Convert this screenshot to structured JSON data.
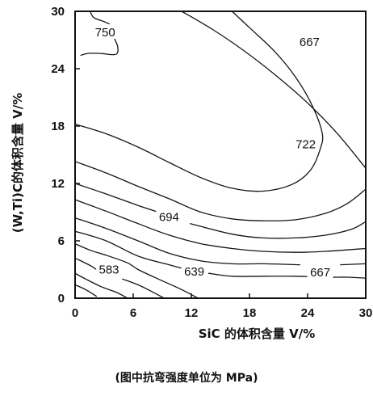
{
  "chart_data": {
    "type": "contour",
    "xlabel": "SiC 的体积含量 V/%",
    "ylabel": "(W,Ti)C的体积含量 V/%",
    "xlim": [
      0,
      30
    ],
    "ylim": [
      0,
      30
    ],
    "xticks": [
      "0",
      "6",
      "12",
      "18",
      "24",
      "30"
    ],
    "yticks": [
      "0",
      "6",
      "12",
      "18",
      "24",
      "30"
    ],
    "grid": false,
    "contour_labels": [
      {
        "text": "750",
        "x": 3.1,
        "y": 27.8
      },
      {
        "text": "667",
        "x": 24.2,
        "y": 26.8
      },
      {
        "text": "722",
        "x": 23.8,
        "y": 16.1
      },
      {
        "text": "694",
        "x": 9.7,
        "y": 8.5
      },
      {
        "text": "583",
        "x": 3.5,
        "y": 3.0
      },
      {
        "text": "639",
        "x": 12.3,
        "y": 2.8
      },
      {
        "text": "667",
        "x": 25.3,
        "y": 2.7
      }
    ],
    "contours": [
      {
        "level": "750",
        "points": [
          [
            0.6,
            25.4
          ],
          [
            1.3,
            25.6
          ],
          [
            2.6,
            25.6
          ],
          [
            4.2,
            25.5
          ],
          [
            4.4,
            26.3
          ],
          [
            4.0,
            27.3
          ],
          [
            3.6,
            28.6
          ],
          [
            2.0,
            29.3
          ],
          [
            1.6,
            29.9
          ]
        ]
      },
      {
        "level": "667",
        "points": [
          [
            11.0,
            30.0
          ],
          [
            14.2,
            28.1
          ],
          [
            17.4,
            25.9
          ],
          [
            20.6,
            23.4
          ],
          [
            23.8,
            20.6
          ],
          [
            27.0,
            17.3
          ],
          [
            30.0,
            13.6
          ]
        ]
      },
      {
        "level": "722",
        "points": [
          [
            0.0,
            18.2
          ],
          [
            3.2,
            17.2
          ],
          [
            6.5,
            15.8
          ],
          [
            9.7,
            14.2
          ],
          [
            13.0,
            12.6
          ],
          [
            16.2,
            11.5
          ],
          [
            19.4,
            11.2
          ],
          [
            22.4,
            11.9
          ],
          [
            24.3,
            13.4
          ],
          [
            25.3,
            15.6
          ],
          [
            25.5,
            17.3
          ],
          [
            24.4,
            20.3
          ],
          [
            22.7,
            23.2
          ],
          [
            20.6,
            25.8
          ],
          [
            18.1,
            28.2
          ],
          [
            16.2,
            30.0
          ]
        ]
      },
      {
        "level": "",
        "points": [
          [
            0.0,
            14.3
          ],
          [
            3.2,
            13.1
          ],
          [
            6.5,
            11.7
          ],
          [
            9.7,
            10.4
          ],
          [
            13.0,
            9.0
          ],
          [
            16.2,
            8.3
          ],
          [
            19.4,
            8.1
          ],
          [
            22.7,
            8.2
          ],
          [
            25.9,
            8.9
          ],
          [
            28.1,
            9.9
          ],
          [
            30.0,
            11.4
          ]
        ]
      },
      {
        "level": "694",
        "points": [
          [
            0.0,
            12.0
          ],
          [
            3.2,
            10.9
          ],
          [
            6.5,
            9.7
          ],
          [
            8.6,
            9.0
          ]
        ]
      },
      {
        "level": "694",
        "points": [
          [
            11.9,
            7.8
          ],
          [
            16.2,
            6.7
          ],
          [
            19.4,
            6.3
          ],
          [
            22.7,
            6.3
          ],
          [
            25.9,
            6.6
          ],
          [
            28.5,
            7.2
          ],
          [
            30.0,
            8.0
          ]
        ]
      },
      {
        "level": "",
        "points": [
          [
            0.0,
            10.3
          ],
          [
            3.2,
            9.1
          ],
          [
            6.5,
            7.8
          ],
          [
            9.7,
            6.6
          ],
          [
            13.0,
            5.7
          ],
          [
            16.2,
            5.2
          ],
          [
            19.4,
            4.9
          ],
          [
            22.7,
            4.8
          ],
          [
            25.9,
            4.9
          ],
          [
            30.0,
            5.2
          ]
        ]
      },
      {
        "level": "",
        "points": [
          [
            0.0,
            8.4
          ],
          [
            3.2,
            7.3
          ],
          [
            6.5,
            6.0
          ],
          [
            9.7,
            4.7
          ],
          [
            13.0,
            3.9
          ],
          [
            16.2,
            3.6
          ],
          [
            19.4,
            3.6
          ],
          [
            23.2,
            3.5
          ]
        ]
      },
      {
        "level": "667",
        "points": [
          [
            27.4,
            3.5
          ],
          [
            30.0,
            3.6
          ]
        ]
      },
      {
        "level": "",
        "points": [
          [
            0.0,
            7.0
          ],
          [
            3.2,
            6.0
          ],
          [
            6.5,
            4.4
          ],
          [
            9.7,
            3.5
          ],
          [
            11.1,
            3.1
          ]
        ]
      },
      {
        "level": "639",
        "points": [
          [
            13.8,
            2.6
          ],
          [
            16.2,
            2.3
          ],
          [
            19.4,
            2.3
          ],
          [
            22.7,
            2.3
          ],
          [
            25.9,
            2.2
          ],
          [
            28.1,
            2.2
          ],
          [
            30.0,
            2.1
          ]
        ]
      },
      {
        "level": "",
        "points": [
          [
            0.0,
            5.7
          ],
          [
            1.6,
            5.0
          ],
          [
            3.2,
            4.5
          ],
          [
            5.4,
            3.7
          ],
          [
            6.5,
            3.0
          ],
          [
            8.6,
            2.0
          ],
          [
            10.8,
            1.0
          ],
          [
            12.7,
            0.0
          ]
        ]
      },
      {
        "level": "583",
        "points": [
          [
            0.0,
            4.2
          ],
          [
            1.6,
            3.4
          ],
          [
            2.2,
            3.0
          ]
        ]
      },
      {
        "level": "583",
        "points": [
          [
            4.9,
            2.0
          ],
          [
            6.5,
            1.4
          ],
          [
            8.1,
            0.6
          ],
          [
            9.2,
            0.0
          ]
        ]
      },
      {
        "level": "",
        "points": [
          [
            0.0,
            2.6
          ],
          [
            1.1,
            2.0
          ],
          [
            2.7,
            1.2
          ],
          [
            4.3,
            0.6
          ],
          [
            5.4,
            0.0
          ]
        ]
      },
      {
        "level": "",
        "points": [
          [
            0.0,
            1.4
          ],
          [
            1.1,
            0.9
          ],
          [
            2.2,
            0.2
          ]
        ]
      }
    ]
  },
  "caption": "(图中抗弯强度单位为 MPa)"
}
